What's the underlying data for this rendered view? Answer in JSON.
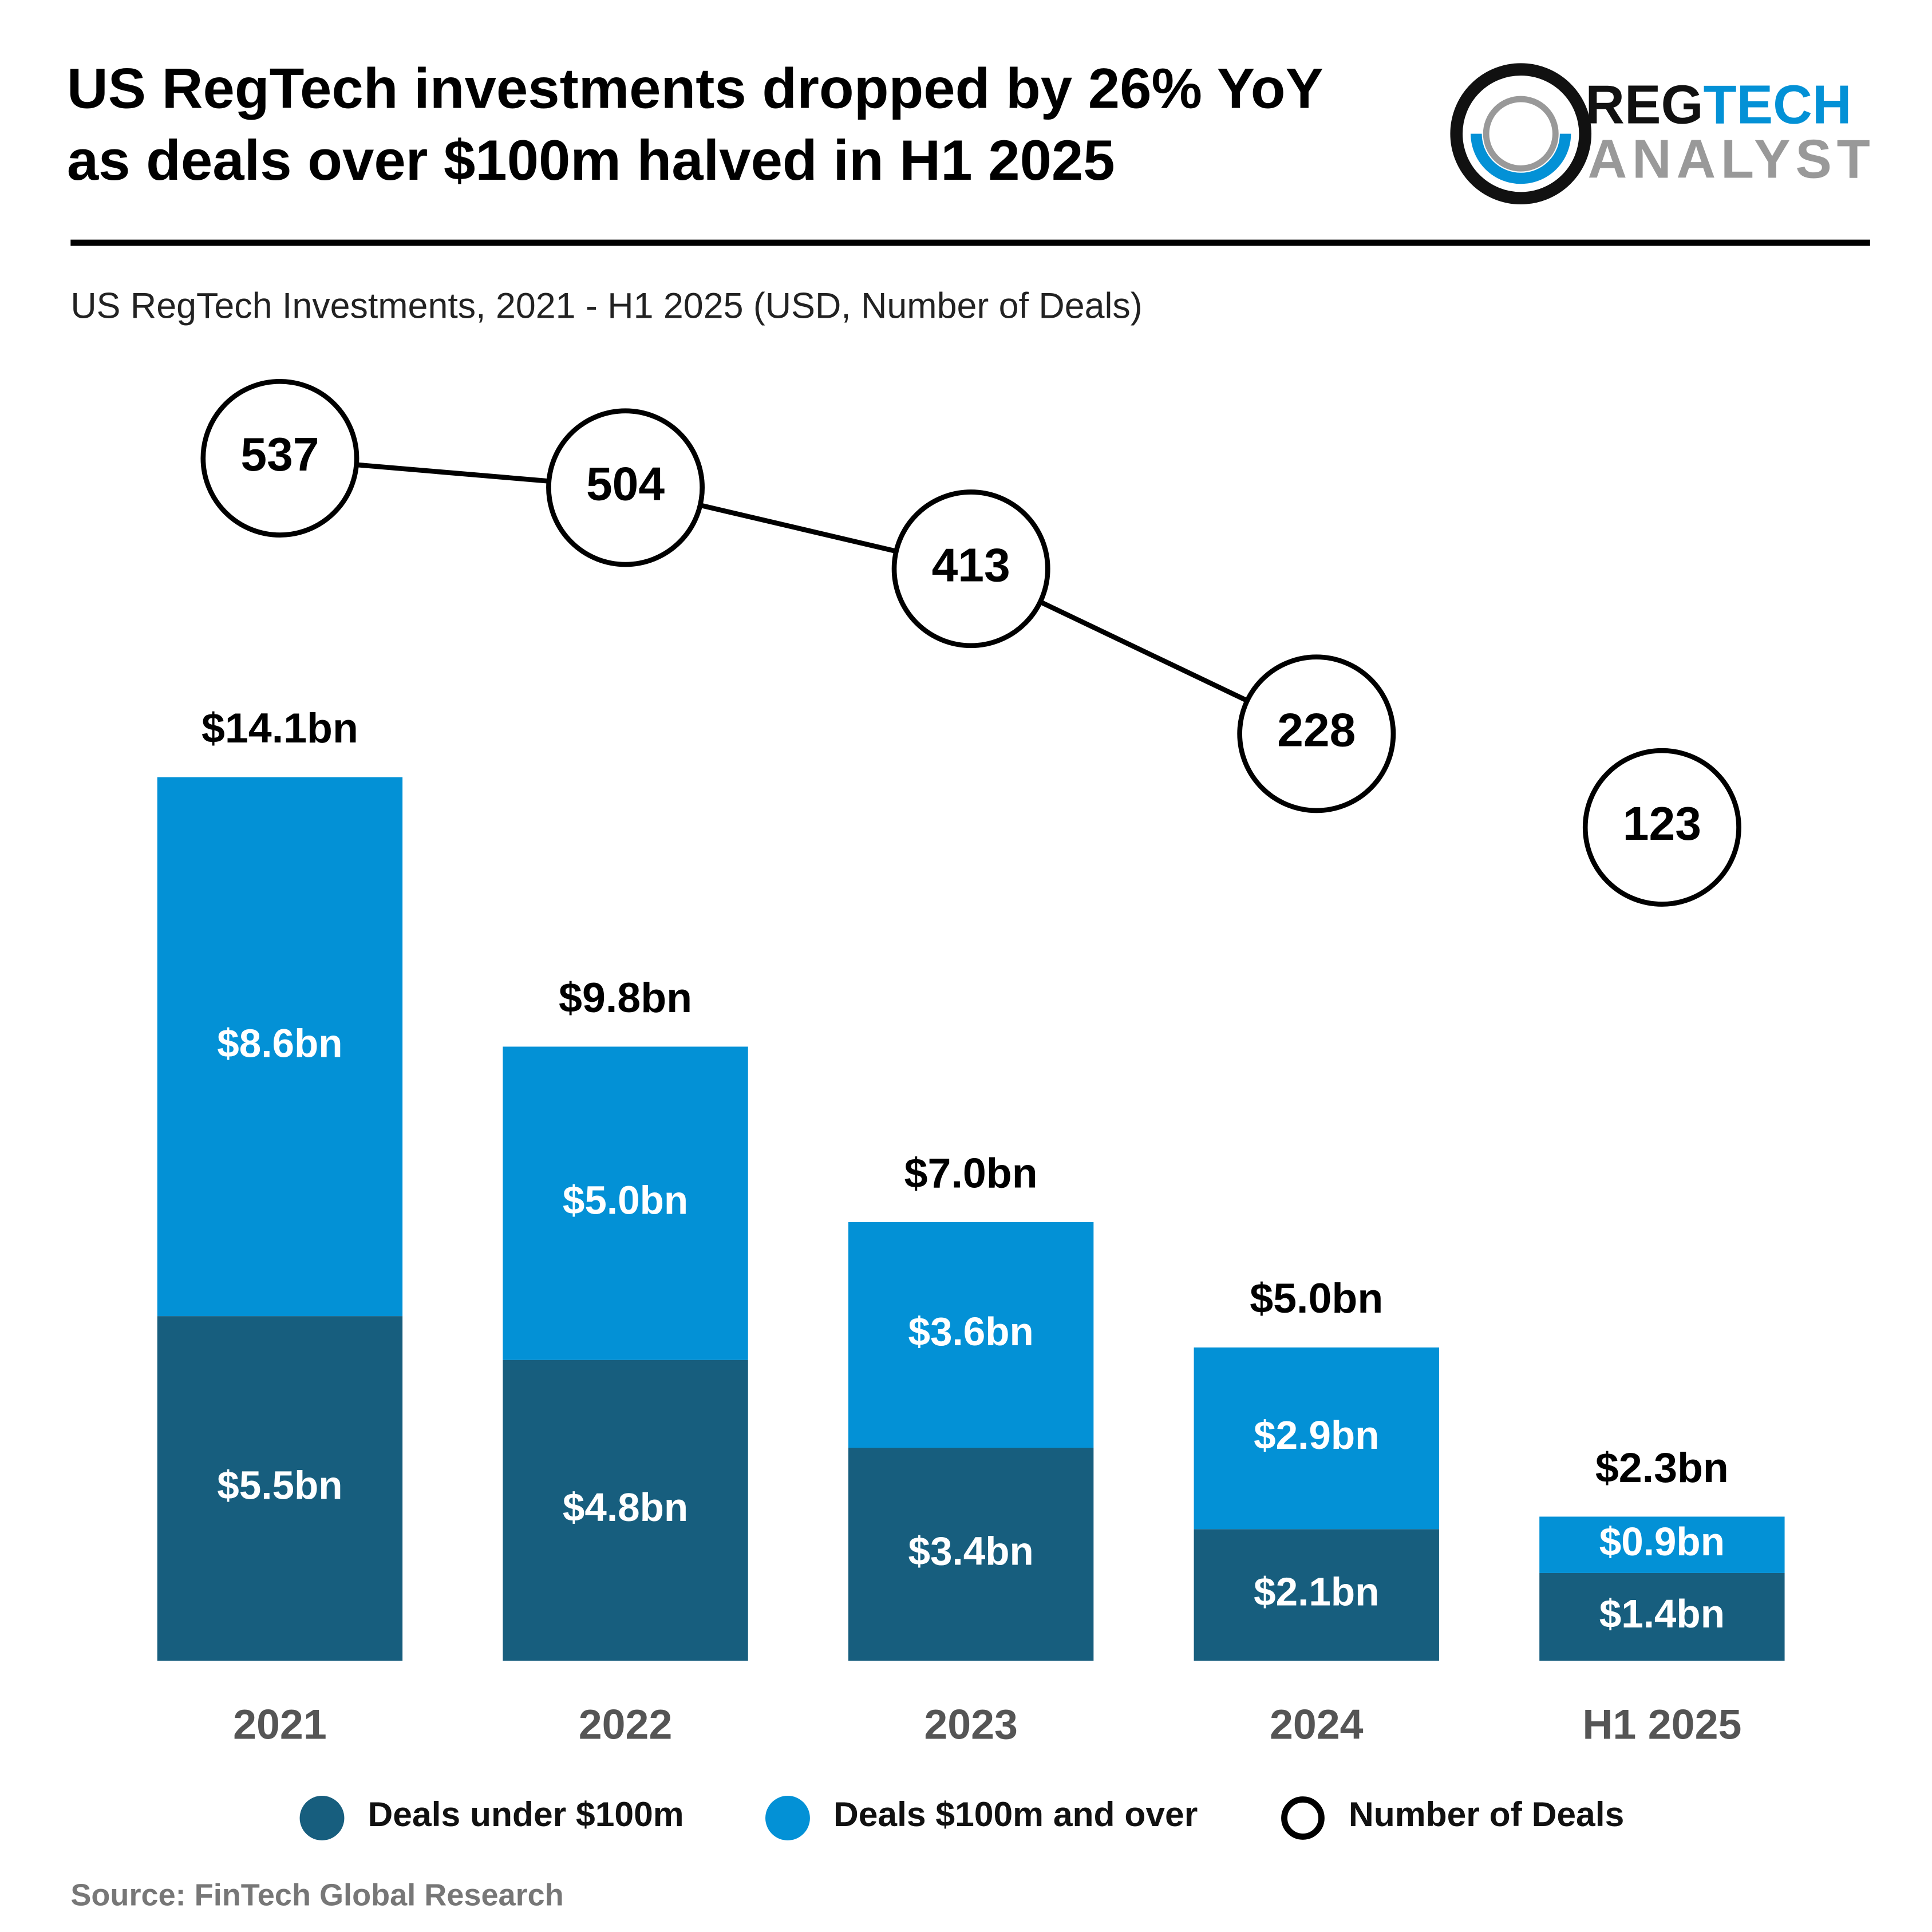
{
  "chart_data": {
    "type": "bar",
    "title": [
      "US RegTech investments dropped by 26% YoY",
      "as deals over $100m halved in H1 2025"
    ],
    "subtitle": "US RegTech Investments, 2021 - H1 2025 (USD, Number of Deals)",
    "logo": {
      "part1": "REG",
      "part2": "TECH",
      "part3": "ANALYST"
    },
    "categories": [
      "2021",
      "2022",
      "2023",
      "2024",
      "H1 2025"
    ],
    "series": [
      {
        "name": "Deals under $100m",
        "color": "#175e7e",
        "values": [
          5.5,
          4.8,
          3.4,
          2.1,
          1.4
        ],
        "value_labels": [
          "$5.5bn",
          "$4.8bn",
          "$3.4bn",
          "$2.1bn",
          "$1.4bn"
        ]
      },
      {
        "name": "Deals $100m and over",
        "color": "#0391d6",
        "values": [
          8.6,
          5.0,
          3.6,
          2.9,
          0.9
        ],
        "value_labels": [
          "$8.6bn",
          "$5.0bn",
          "$3.6bn",
          "$2.9bn",
          "$0.9bn"
        ]
      },
      {
        "name": "Number of Deals",
        "type": "line",
        "color": "#000000",
        "values": [
          537,
          504,
          413,
          228,
          123
        ],
        "connected_count": 4
      }
    ],
    "totals": [
      14.1,
      9.8,
      7.0,
      5.0,
      2.3
    ],
    "total_labels": [
      "$14.1bn",
      "$9.8bn",
      "$7.0bn",
      "$5.0bn",
      "$2.3bn"
    ],
    "source": "Source: FinTech Global Research"
  }
}
